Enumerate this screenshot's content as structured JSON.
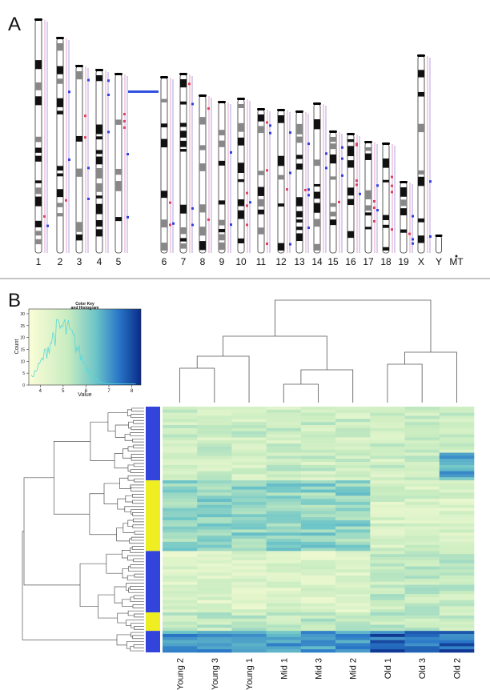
{
  "panel_labels": [
    "A",
    "B"
  ],
  "karyotype": {
    "chromosomes": [
      "1",
      "2",
      "3",
      "4",
      "5",
      "6",
      "7",
      "8",
      "9",
      "10",
      "11",
      "12",
      "13",
      "14",
      "15",
      "16",
      "17",
      "18",
      "19",
      "X",
      "Y",
      "MT"
    ]
  },
  "color_key": {
    "title": [
      "Color Key",
      "and Histogram"
    ],
    "x_label": "Value",
    "y_label": "Count",
    "xlim": [
      3.5,
      8.4
    ],
    "xticks": [
      4,
      5,
      6,
      7,
      8
    ],
    "ylim": [
      0,
      32
    ],
    "yticks": [
      0,
      5,
      10,
      15,
      20,
      25,
      30
    ]
  },
  "heatmap": {
    "columns": [
      "Young 2",
      "Young 3",
      "Young 1",
      "Mid 1",
      "Mid 3",
      "Mid 2",
      "Old 1",
      "Old 3",
      "Old 2"
    ]
  }
}
